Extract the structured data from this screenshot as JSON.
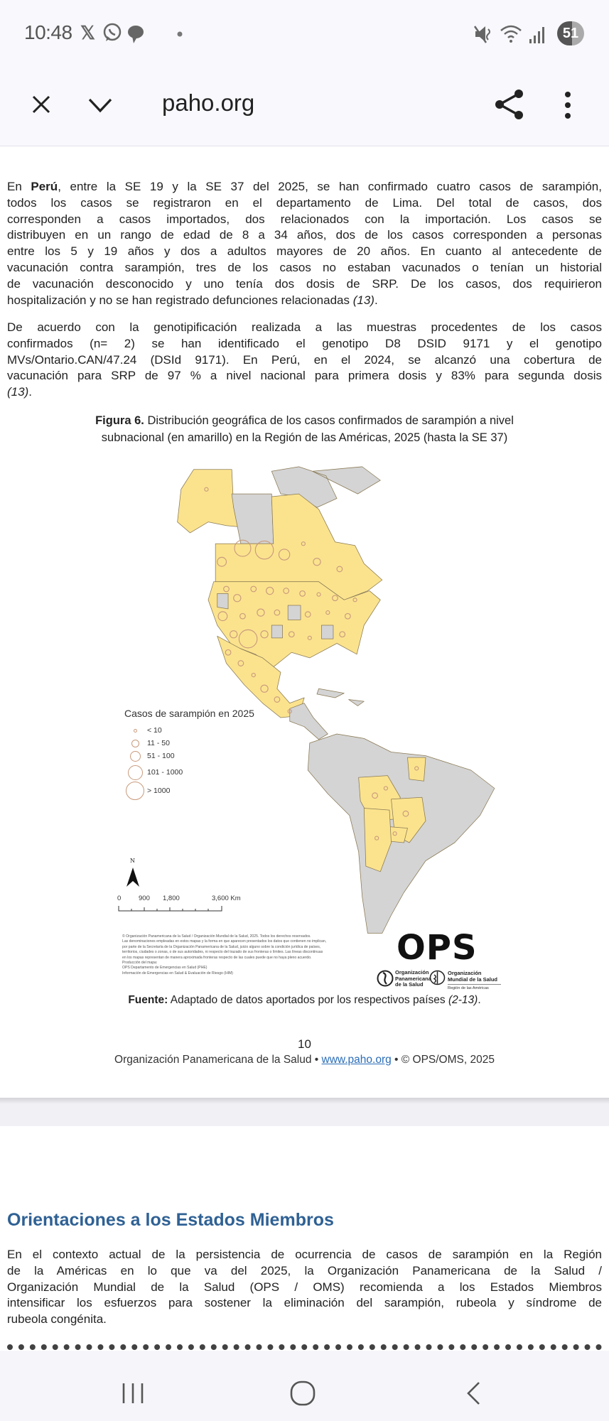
{
  "status_bar": {
    "time": "10:48",
    "battery": "51",
    "left_icons": [
      "x-icon",
      "whatsapp-icon",
      "chat-icon",
      "dot-icon"
    ],
    "right_icons": [
      "mute-icon",
      "wifi-icon",
      "signal-icon",
      "battery-icon"
    ]
  },
  "toolbar": {
    "url": "paho.org",
    "icons": [
      "close-icon",
      "chevron-down-icon",
      "share-icon",
      "more-vert-icon"
    ]
  },
  "paragraphs": [
    {
      "lines": [
        [
          {
            "t": "En "
          },
          {
            "t": "Perú",
            "b": true
          },
          {
            "t": ", entre la SE 19 y la SE 37 del 2025, se han confirmado cuatro casos de sarampión,"
          }
        ],
        "todos los casos se registraron en el departamento de Lima. Del total de casos, dos",
        "corresponden a casos importados, dos relacionados con la importación. Los casos se",
        "distribuyen en un rango de edad de 8 a 34 años, dos de los casos corresponden a personas",
        "entre los 5 y 19 años y dos a adultos mayores de 20 años. En cuanto al antecedente de",
        "vacunación contra sarampión, tres de los casos no estaban vacunados o tenían un historial",
        "de vacunación desconocido y uno tenía dos dosis de SRP.  De los casos, dos requirieron",
        [
          {
            "t": "hospitalización y no se han registrado defunciones relacionadas "
          },
          {
            "t": "(13)",
            "i": true
          },
          {
            "t": "."
          }
        ]
      ]
    },
    {
      "lines": [
        "De acuerdo con la genotipificación realizada a las muestras procedentes de los casos",
        "confirmados (n= 2) se han identificado el genotipo D8 DSID 9171 y el genotipo",
        "MVs/Ontario.CAN/47.24 (DSId 9171). En Perú, en el 2024, se alcanzó una cobertura de",
        "vacunación para SRP de 97 % a nivel nacional para primera dosis y 83% para segunda dosis",
        [
          {
            "t": "(13)",
            "i": true
          },
          {
            "t": "."
          }
        ]
      ]
    },
    {
      "lines": [
        "En el contexto actual de la persistencia de ocurrencia de casos de sarampión en la Región",
        "de la Américas en lo que va del 2025, la Organización Panamericana de la Salud /",
        "Organización Mundial de la Salud (OPS / OMS) recomienda a los Estados Miembros",
        "intensificar los esfuerzos para sostener la eliminación del sarampión, rubeola y síndrome de",
        "rubeola congénita."
      ]
    }
  ],
  "figure": {
    "label": "Figura 6.",
    "caption_line1": " Distribución geográfica de los casos confirmados de sarampión a nivel",
    "caption_line2": "subnacional (en amarillo) en la Región de las Américas, 2025 (hasta la SE 37)",
    "legend": {
      "title": "Casos de sarampión en 2025",
      "items": [
        "< 10",
        "11 - 50",
        "51 - 100",
        "101 - 1000",
        "> 1000"
      ]
    },
    "north_label": "N",
    "scale": [
      "0",
      "900",
      "1,800",
      "3,600 Km"
    ],
    "colors": {
      "affected": "#fbe38e",
      "unaffected": "#d4d4d4",
      "circle": "#c99a7c"
    },
    "disclaimer": [
      "© Organización Panamericana de la Salud / Organización Mundial de la Salud, 2025. Todos los derechos reservados.",
      "Las denominaciones empleadas en estos mapas y la forma en que aparecen presentados los datos que contienen no implican,",
      "por parte de la Secretaría de la Organización Panamericana de la Salud, juicio alguno sobre la condición jurídica de países,",
      "territorios, ciudades o zonas, o de sus autoridades, ni respecto del trazado de sus fronteras o límites.  Las líneas discontinuas",
      "en los mapas representan de manera aproximada fronteras respecto de las cuales puede que no haya pleno acuerdo.",
      "Producción del mapa:",
      "OPS Departamento de Emergencias en Salud (PHE)",
      "Información de Emergencias en Salud & Evaluación de Riesgo (HIM)"
    ],
    "logo": {
      "text": "OPS",
      "org1": [
        "Organización",
        "Panamericana",
        "de la Salud"
      ],
      "org2": [
        "Organización",
        "Mundial de la Salud"
      ],
      "region": "Región de las Américas"
    },
    "source_label": "Fuente:",
    "source_text": " Adaptado de datos aportados por los respectivos países ",
    "source_ref": "(2-13)",
    "source_end": "."
  },
  "page_footer": {
    "page_number": "10",
    "org": "Organización Panamericana de la Salud • ",
    "link": "www.paho.org",
    "copyright": " • © OPS/OMS, 2025"
  },
  "section": {
    "heading": "Orientaciones a los Estados Miembros"
  },
  "nav_bar": {
    "icons": [
      "recent-apps-icon",
      "home-icon",
      "back-icon"
    ]
  }
}
